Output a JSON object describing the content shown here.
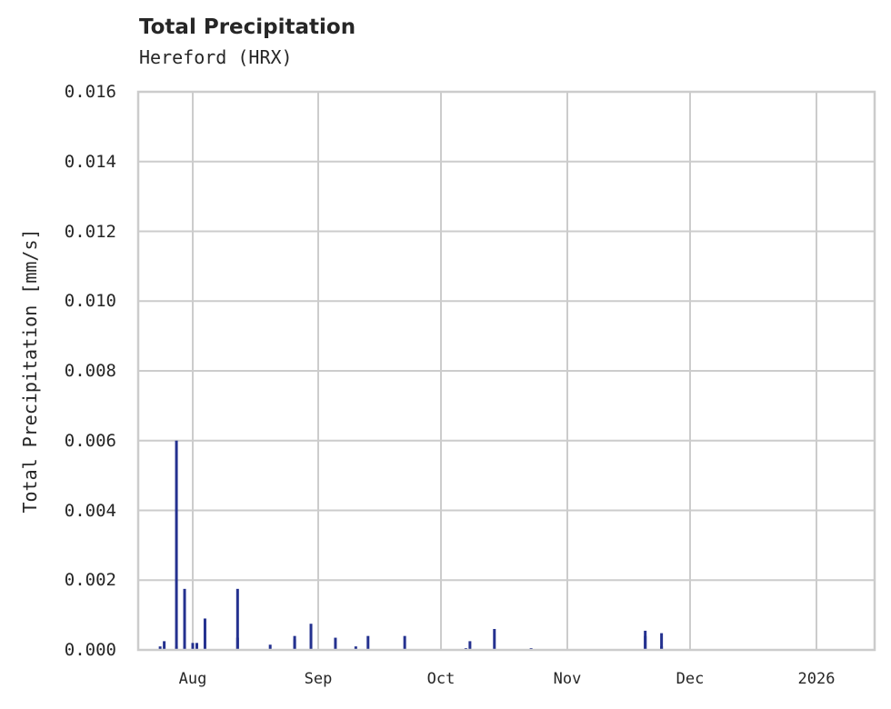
{
  "chart_data": {
    "type": "bar",
    "title": "Total Precipitation",
    "subtitle": "Hereford (HRX)",
    "xlabel": "",
    "ylabel": "Total Precipitation [mm/s]",
    "ylim": [
      0,
      0.016
    ],
    "yticks": [
      "0.000",
      "0.002",
      "0.004",
      "0.006",
      "0.008",
      "0.010",
      "0.012",
      "0.014",
      "0.016"
    ],
    "xticks": [
      "Aug",
      "Sep",
      "Oct",
      "Nov",
      "Dec",
      "2026"
    ],
    "grid": true,
    "legend": null,
    "bar_color": "#24318f",
    "series": [
      {
        "name": "Total Precipitation",
        "points": [
          {
            "date": "Jul 24",
            "value": 0.0001
          },
          {
            "date": "Jul 25",
            "value": 0.00025
          },
          {
            "date": "Jul 28",
            "value": 0.0001
          },
          {
            "date": "Jul 28",
            "value": 0.006
          },
          {
            "date": "Jul 30",
            "value": 0.00175
          },
          {
            "date": "Jul 30",
            "value": 0.0001
          },
          {
            "date": "Aug 1",
            "value": 0.0002
          },
          {
            "date": "Aug 2",
            "value": 0.0002
          },
          {
            "date": "Aug 4",
            "value": 0.0009
          },
          {
            "date": "Aug 12",
            "value": 0.00175
          },
          {
            "date": "Aug 12",
            "value": 0.00035
          },
          {
            "date": "Aug 20",
            "value": 0.00015
          },
          {
            "date": "Aug 26",
            "value": 0.0004
          },
          {
            "date": "Aug 26",
            "value": 0.0003
          },
          {
            "date": "Aug 30",
            "value": 0.00075
          },
          {
            "date": "Sep 5",
            "value": 0.00035
          },
          {
            "date": "Sep 10",
            "value": 0.0001
          },
          {
            "date": "Sep 13",
            "value": 0.0004
          },
          {
            "date": "Sep 22",
            "value": 0.0004
          },
          {
            "date": "Oct 7",
            "value": 5e-05
          },
          {
            "date": "Oct 8",
            "value": 0.00025
          },
          {
            "date": "Oct 14",
            "value": 0.0006
          },
          {
            "date": "Oct 23",
            "value": 5e-05
          },
          {
            "date": "Nov 20",
            "value": 0.00055
          },
          {
            "date": "Nov 20",
            "value": 0.0004
          },
          {
            "date": "Nov 24",
            "value": 0.00048
          },
          {
            "date": "Nov 24",
            "value": 0.0001
          }
        ]
      }
    ]
  }
}
